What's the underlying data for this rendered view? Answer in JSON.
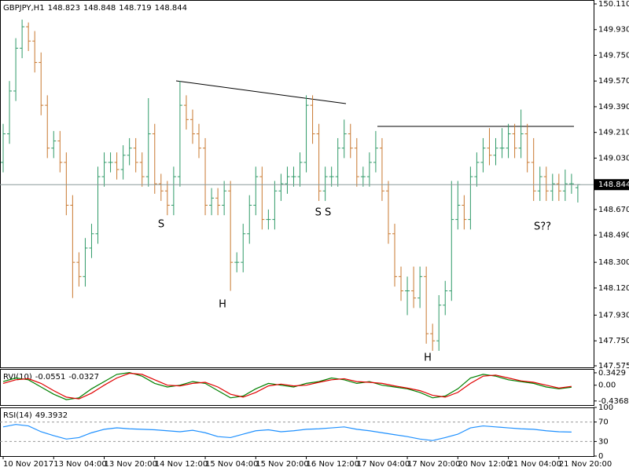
{
  "chart_data": [
    {
      "type": "ohlc",
      "title": "GBPJPY,H1",
      "x": [
        0,
        2,
        4,
        6,
        8,
        10,
        12,
        14,
        16,
        18,
        20,
        22,
        24,
        26,
        28,
        30,
        32,
        34,
        36,
        38,
        40,
        42,
        44,
        46,
        48,
        50,
        52,
        54,
        56,
        58,
        60,
        62,
        64,
        66,
        68,
        70,
        72,
        74,
        76,
        78,
        80,
        82,
        84,
        86,
        88,
        90,
        92,
        94,
        96,
        98,
        100,
        102,
        104,
        106,
        108,
        110,
        112,
        114,
        116,
        118,
        120,
        122,
        124,
        126,
        128,
        130,
        132,
        134,
        136,
        138,
        140,
        142,
        144,
        146,
        148,
        150,
        152,
        154,
        156,
        158,
        160,
        162,
        164,
        166,
        168,
        170,
        172,
        174,
        176,
        178,
        180,
        182
      ],
      "open": [
        149.0,
        149.2,
        149.5,
        149.8,
        149.95,
        149.85,
        149.7,
        149.4,
        149.1,
        149.15,
        149.0,
        148.7,
        148.3,
        148.2,
        148.4,
        148.5,
        148.9,
        149.0,
        149.0,
        148.95,
        149.05,
        149.1,
        149.0,
        148.9,
        149.2,
        148.85,
        148.8,
        148.7,
        148.9,
        149.4,
        149.3,
        149.2,
        149.1,
        148.7,
        148.75,
        148.7,
        148.8,
        148.3,
        148.3,
        148.5,
        148.7,
        148.9,
        148.6,
        148.6,
        148.8,
        148.85,
        148.9,
        148.9,
        149.0,
        149.4,
        149.2,
        148.8,
        148.9,
        148.9,
        149.1,
        149.2,
        149.1,
        148.9,
        148.9,
        149.0,
        149.1,
        148.8,
        148.5,
        148.2,
        148.1,
        148.1,
        148.05,
        148.2,
        147.8,
        147.75,
        148.0,
        148.1,
        148.6,
        148.7,
        148.6,
        148.9,
        149.0,
        149.1,
        149.05,
        149.1,
        149.1,
        149.2,
        149.1,
        149.2,
        149.0,
        148.8,
        148.9,
        148.8,
        148.85,
        148.8,
        148.85,
        148.823
      ],
      "high": [
        149.27,
        149.57,
        149.87,
        150.0,
        149.98,
        149.92,
        149.77,
        149.47,
        149.22,
        149.22,
        149.07,
        148.77,
        148.37,
        148.47,
        148.57,
        148.97,
        149.07,
        149.07,
        149.07,
        149.12,
        149.17,
        149.17,
        149.07,
        149.45,
        149.27,
        148.92,
        148.87,
        148.97,
        149.57,
        149.47,
        149.37,
        149.27,
        149.17,
        148.82,
        148.82,
        148.87,
        148.87,
        148.37,
        148.57,
        148.77,
        148.97,
        148.97,
        148.67,
        148.87,
        148.92,
        148.97,
        148.97,
        149.07,
        149.47,
        149.47,
        149.27,
        148.97,
        148.97,
        149.17,
        149.3,
        149.27,
        149.17,
        148.97,
        149.07,
        149.22,
        149.17,
        148.87,
        148.57,
        148.27,
        148.2,
        148.27,
        148.27,
        148.27,
        147.87,
        148.07,
        148.17,
        148.87,
        148.87,
        148.77,
        148.97,
        149.07,
        149.17,
        149.24,
        149.17,
        149.24,
        149.27,
        149.27,
        149.37,
        149.27,
        149.17,
        148.97,
        148.97,
        148.92,
        148.92,
        148.95,
        148.92,
        148.848
      ],
      "low": [
        148.93,
        149.13,
        149.43,
        149.73,
        149.78,
        149.63,
        149.33,
        149.03,
        149.03,
        148.93,
        148.63,
        148.05,
        148.13,
        148.13,
        148.33,
        148.43,
        148.83,
        148.93,
        148.88,
        148.88,
        148.98,
        148.93,
        148.83,
        148.83,
        148.78,
        148.73,
        148.63,
        148.63,
        148.83,
        149.23,
        149.13,
        149.03,
        148.63,
        148.63,
        148.63,
        148.63,
        148.1,
        148.23,
        148.23,
        148.43,
        148.63,
        148.53,
        148.53,
        148.53,
        148.73,
        148.78,
        148.83,
        148.83,
        148.93,
        149.13,
        148.73,
        148.73,
        148.83,
        148.83,
        149.03,
        149.03,
        148.83,
        148.83,
        148.83,
        148.93,
        148.73,
        148.43,
        148.13,
        148.03,
        147.93,
        147.98,
        147.98,
        147.73,
        147.68,
        147.68,
        147.93,
        148.03,
        148.53,
        148.53,
        148.53,
        148.83,
        148.93,
        148.98,
        148.98,
        149.03,
        149.03,
        149.03,
        149.03,
        148.93,
        148.73,
        148.73,
        148.73,
        148.73,
        148.73,
        148.73,
        148.78,
        148.719
      ],
      "close": [
        149.2,
        149.5,
        149.8,
        149.95,
        149.85,
        149.7,
        149.4,
        149.1,
        149.15,
        149.0,
        148.7,
        148.3,
        148.2,
        148.4,
        148.5,
        148.9,
        149.0,
        149.0,
        148.95,
        149.05,
        149.1,
        149.0,
        148.9,
        149.2,
        148.85,
        148.8,
        148.7,
        148.9,
        149.4,
        149.3,
        149.2,
        149.1,
        148.7,
        148.75,
        148.7,
        148.8,
        148.3,
        148.3,
        148.5,
        148.7,
        148.9,
        148.6,
        148.6,
        148.8,
        148.85,
        148.9,
        148.9,
        149.0,
        149.4,
        149.2,
        148.8,
        148.9,
        148.9,
        149.1,
        149.2,
        149.1,
        148.9,
        148.9,
        149.0,
        149.1,
        148.8,
        148.5,
        148.2,
        148.1,
        148.1,
        148.05,
        148.2,
        147.8,
        147.75,
        148.0,
        148.1,
        148.6,
        148.7,
        148.6,
        148.9,
        149.0,
        149.1,
        149.05,
        149.1,
        149.1,
        149.2,
        149.1,
        149.2,
        149.0,
        148.8,
        148.9,
        148.8,
        148.85,
        148.8,
        148.85,
        148.85,
        148.844
      ],
      "up_color": "#2f9a68",
      "down_color": "#c8782f",
      "xlim": [
        -1,
        187
      ],
      "xticks": [
        {
          "value": 0,
          "label": "10 Nov 2017"
        },
        {
          "value": 16,
          "label": "13 Nov 04:00"
        },
        {
          "value": 32,
          "label": "13 Nov 20:00"
        },
        {
          "value": 48,
          "label": "14 Nov 12:00"
        },
        {
          "value": 64,
          "label": "15 Nov 04:00"
        },
        {
          "value": 80,
          "label": "15 Nov 20:00"
        },
        {
          "value": 96,
          "label": "16 Nov 12:00"
        },
        {
          "value": 112,
          "label": "17 Nov 04:00"
        },
        {
          "value": 128,
          "label": "17 Nov 20:00"
        },
        {
          "value": 144,
          "label": "20 Nov 12:00"
        },
        {
          "value": 160,
          "label": "21 Nov 04:00"
        },
        {
          "value": 176,
          "label": "21 Nov 20:00"
        }
      ],
      "ylim": [
        147.564,
        150.1375
      ],
      "yticks": [
        {
          "value": 150.11,
          "label": "150.110"
        },
        {
          "value": 149.93,
          "label": "149.930"
        },
        {
          "value": 149.75,
          "label": "149.750"
        },
        {
          "value": 149.57,
          "label": "149.570"
        },
        {
          "value": 149.39,
          "label": "149.390"
        },
        {
          "value": 149.21,
          "label": "149.210"
        },
        {
          "value": 149.03,
          "label": "149.030"
        },
        {
          "value": 148.67,
          "label": "148.670"
        },
        {
          "value": 148.49,
          "label": "148.490"
        },
        {
          "value": 148.3,
          "label": "148.300"
        },
        {
          "value": 148.12,
          "label": "148.120"
        },
        {
          "value": 147.93,
          "label": "147.930"
        },
        {
          "value": 147.75,
          "label": "147.750"
        },
        147.575
      ],
      "annotations": [
        "S",
        "H",
        "S S",
        "H",
        "S??"
      ]
    },
    {
      "type": "line",
      "title": "RVI(10)",
      "x": [
        0,
        4,
        8,
        12,
        16,
        20,
        24,
        28,
        32,
        36,
        40,
        44,
        48,
        52,
        56,
        60,
        64,
        68,
        72,
        76,
        80,
        84,
        88,
        92,
        96,
        100,
        104,
        108,
        112,
        116,
        120,
        124,
        128,
        132,
        136,
        140,
        144,
        148,
        152,
        156,
        160,
        164,
        168,
        172,
        176,
        180
      ],
      "series": [
        {
          "color": "#008000",
          "values": [
            0.1,
            0.2,
            0.15,
            -0.05,
            -0.25,
            -0.4,
            -0.35,
            -0.1,
            0.1,
            0.3,
            0.35,
            0.25,
            0.05,
            -0.05,
            0.0,
            0.1,
            0.05,
            -0.15,
            -0.35,
            -0.3,
            -0.1,
            0.05,
            0.0,
            -0.05,
            0.05,
            0.1,
            0.2,
            0.15,
            0.05,
            0.1,
            0.0,
            -0.05,
            -0.1,
            -0.2,
            -0.35,
            -0.3,
            -0.1,
            0.2,
            0.3,
            0.25,
            0.15,
            0.1,
            0.05,
            -0.05,
            -0.1,
            -0.0551
          ]
        },
        {
          "color": "#e00000",
          "values": [
            0.05,
            0.15,
            0.18,
            0.05,
            -0.15,
            -0.33,
            -0.38,
            -0.22,
            0.0,
            0.2,
            0.33,
            0.3,
            0.15,
            0.0,
            -0.02,
            0.05,
            0.08,
            -0.05,
            -0.25,
            -0.33,
            -0.2,
            -0.02,
            0.03,
            -0.02,
            0.0,
            0.08,
            0.15,
            0.18,
            0.1,
            0.08,
            0.05,
            -0.02,
            -0.08,
            -0.15,
            -0.28,
            -0.33,
            -0.2,
            0.05,
            0.25,
            0.28,
            0.2,
            0.12,
            0.08,
            0.0,
            -0.08,
            -0.0327
          ]
        }
      ],
      "xlim": [
        -1,
        187
      ],
      "ylim": [
        -0.55,
        0.45
      ],
      "yticks": [
        0.3429,
        {
          "value": 0,
          "label": "0.00"
        },
        -0.4368
      ]
    },
    {
      "type": "line",
      "title": "RSI(14)",
      "x": [
        0,
        4,
        8,
        12,
        16,
        20,
        24,
        28,
        32,
        36,
        40,
        44,
        48,
        52,
        56,
        60,
        64,
        68,
        72,
        76,
        80,
        84,
        88,
        92,
        96,
        100,
        104,
        108,
        112,
        116,
        120,
        124,
        128,
        132,
        136,
        140,
        144,
        148,
        152,
        156,
        160,
        164,
        168,
        172,
        176,
        180
      ],
      "series": [
        {
          "color": "#1e90ff",
          "values": [
            60,
            65,
            62,
            50,
            42,
            35,
            38,
            48,
            55,
            58,
            56,
            55,
            54,
            52,
            50,
            53,
            48,
            40,
            38,
            45,
            52,
            54,
            50,
            52,
            55,
            56,
            58,
            60,
            55,
            52,
            48,
            44,
            40,
            35,
            32,
            38,
            45,
            58,
            62,
            60,
            58,
            56,
            55,
            52,
            50,
            49.3932
          ]
        }
      ],
      "xlim": [
        -1,
        187
      ],
      "ylim": [
        0,
        100
      ],
      "yticks": [
        100,
        70,
        30,
        0
      ]
    }
  ]
}
